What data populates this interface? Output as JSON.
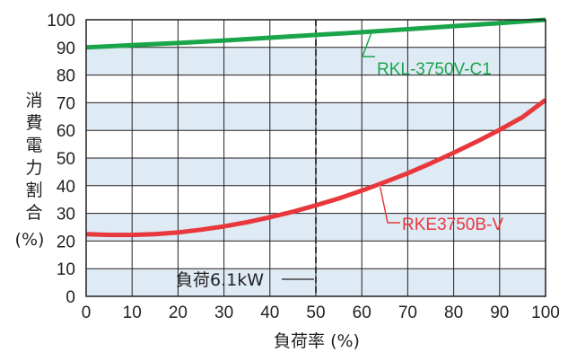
{
  "chart_data": {
    "type": "line",
    "xlabel": "負荷率 (%)",
    "ylabel_chars": [
      "消",
      "費",
      "電",
      "力",
      "割",
      "合"
    ],
    "ylabel_unit": "(%)",
    "xlim": [
      0,
      100
    ],
    "ylim": [
      0,
      100
    ],
    "x_ticks": [
      0,
      10,
      20,
      30,
      40,
      50,
      60,
      70,
      80,
      90,
      100
    ],
    "y_ticks": [
      0,
      10,
      20,
      30,
      40,
      50,
      60,
      70,
      80,
      90,
      100
    ],
    "band_fill": "#deeaf4",
    "grid": true,
    "series": [
      {
        "name": "RKL-3750V-C1",
        "color": "#1ba54a",
        "x": [
          0,
          10,
          20,
          30,
          40,
          50,
          60,
          70,
          80,
          90,
          100
        ],
        "y": [
          90,
          90.8,
          91.6,
          92.5,
          93.5,
          94.5,
          95.5,
          96.6,
          97.7,
          98.8,
          100
        ]
      },
      {
        "name": "RKE3750B-V",
        "color": "#e8383d",
        "x": [
          0,
          5,
          10,
          15,
          20,
          25,
          30,
          35,
          40,
          45,
          50,
          55,
          60,
          65,
          70,
          75,
          80,
          85,
          90,
          95,
          100
        ],
        "y": [
          22.5,
          22.2,
          22.2,
          22.5,
          23.1,
          24.1,
          25.3,
          26.8,
          28.6,
          30.6,
          32.9,
          35.4,
          38.2,
          41.3,
          44.5,
          48.1,
          51.9,
          55.9,
          60.2,
          64.8,
          71
        ]
      }
    ],
    "annotations": {
      "load_line_x": 50,
      "load_label": "負荷6.1kW"
    }
  }
}
